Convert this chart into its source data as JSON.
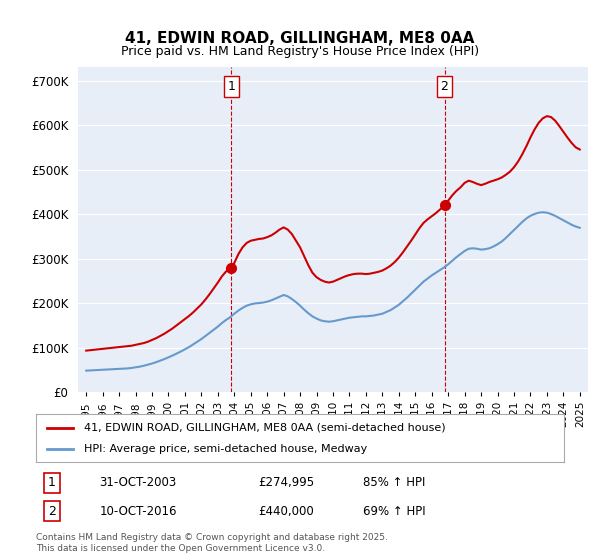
{
  "title": "41, EDWIN ROAD, GILLINGHAM, ME8 0AA",
  "subtitle": "Price paid vs. HM Land Registry's House Price Index (HPI)",
  "legend_line1": "41, EDWIN ROAD, GILLINGHAM, ME8 0AA (semi-detached house)",
  "legend_line2": "HPI: Average price, semi-detached house, Medway",
  "footnote": "Contains HM Land Registry data © Crown copyright and database right 2025.\nThis data is licensed under the Open Government Licence v3.0.",
  "marker1_label": "1",
  "marker1_date": "31-OCT-2003",
  "marker1_price": "£274,995",
  "marker1_hpi": "85% ↑ HPI",
  "marker2_label": "2",
  "marker2_date": "10-OCT-2016",
  "marker2_price": "£440,000",
  "marker2_hpi": "69% ↑ HPI",
  "red_color": "#cc0000",
  "blue_color": "#6699cc",
  "dashed_color": "#cc0000",
  "background_color": "#e8eef8",
  "plot_bg_color": "#e8eef8",
  "ylim": [
    0,
    730000
  ],
  "yticks": [
    0,
    100000,
    200000,
    300000,
    400000,
    500000,
    600000,
    700000
  ],
  "marker1_x": 2003.83,
  "marker2_x": 2016.78,
  "red_x": [
    1995,
    1995.25,
    1995.5,
    1995.75,
    1996,
    1996.25,
    1996.5,
    1996.75,
    1997,
    1997.25,
    1997.5,
    1997.75,
    1998,
    1998.25,
    1998.5,
    1998.75,
    1999,
    1999.25,
    1999.5,
    1999.75,
    2000,
    2000.25,
    2000.5,
    2000.75,
    2001,
    2001.25,
    2001.5,
    2001.75,
    2002,
    2002.25,
    2002.5,
    2002.75,
    2003,
    2003.25,
    2003.5,
    2003.75,
    2004,
    2004.25,
    2004.5,
    2004.75,
    2005,
    2005.25,
    2005.5,
    2005.75,
    2006,
    2006.25,
    2006.5,
    2006.75,
    2007,
    2007.25,
    2007.5,
    2007.75,
    2008,
    2008.25,
    2008.5,
    2008.75,
    2009,
    2009.25,
    2009.5,
    2009.75,
    2010,
    2010.25,
    2010.5,
    2010.75,
    2011,
    2011.25,
    2011.5,
    2011.75,
    2012,
    2012.25,
    2012.5,
    2012.75,
    2013,
    2013.25,
    2013.5,
    2013.75,
    2014,
    2014.25,
    2014.5,
    2014.75,
    2015,
    2015.25,
    2015.5,
    2015.75,
    2016,
    2016.25,
    2016.5,
    2016.75,
    2017,
    2017.25,
    2017.5,
    2017.75,
    2018,
    2018.25,
    2018.5,
    2018.75,
    2019,
    2019.25,
    2019.5,
    2019.75,
    2020,
    2020.25,
    2020.5,
    2020.75,
    2021,
    2021.25,
    2021.5,
    2021.75,
    2022,
    2022.25,
    2022.5,
    2022.75,
    2023,
    2023.25,
    2023.5,
    2023.75,
    2024,
    2024.25,
    2024.5,
    2024.75,
    2025
  ],
  "red_y": [
    93000,
    94000,
    95000,
    96000,
    97000,
    98000,
    99000,
    100000,
    101000,
    102000,
    103000,
    104000,
    106000,
    108000,
    110000,
    113000,
    117000,
    121000,
    126000,
    131000,
    137000,
    143000,
    150000,
    157000,
    164000,
    171000,
    179000,
    188000,
    197000,
    208000,
    220000,
    233000,
    246000,
    260000,
    271000,
    275000,
    290000,
    310000,
    325000,
    335000,
    340000,
    342000,
    344000,
    345000,
    348000,
    352000,
    358000,
    365000,
    370000,
    365000,
    355000,
    340000,
    325000,
    305000,
    285000,
    268000,
    258000,
    252000,
    248000,
    246000,
    248000,
    252000,
    256000,
    260000,
    263000,
    265000,
    266000,
    266000,
    265000,
    266000,
    268000,
    270000,
    273000,
    278000,
    284000,
    292000,
    302000,
    314000,
    327000,
    340000,
    354000,
    368000,
    380000,
    388000,
    395000,
    402000,
    410000,
    418000,
    430000,
    442000,
    452000,
    460000,
    470000,
    475000,
    472000,
    468000,
    465000,
    468000,
    472000,
    475000,
    478000,
    482000,
    488000,
    495000,
    505000,
    518000,
    534000,
    552000,
    572000,
    590000,
    605000,
    615000,
    620000,
    618000,
    610000,
    598000,
    585000,
    572000,
    560000,
    550000,
    545000
  ],
  "blue_x": [
    1995,
    1995.25,
    1995.5,
    1995.75,
    1996,
    1996.25,
    1996.5,
    1996.75,
    1997,
    1997.25,
    1997.5,
    1997.75,
    1998,
    1998.25,
    1998.5,
    1998.75,
    1999,
    1999.25,
    1999.5,
    1999.75,
    2000,
    2000.25,
    2000.5,
    2000.75,
    2001,
    2001.25,
    2001.5,
    2001.75,
    2002,
    2002.25,
    2002.5,
    2002.75,
    2003,
    2003.25,
    2003.5,
    2003.75,
    2004,
    2004.25,
    2004.5,
    2004.75,
    2005,
    2005.25,
    2005.5,
    2005.75,
    2006,
    2006.25,
    2006.5,
    2006.75,
    2007,
    2007.25,
    2007.5,
    2007.75,
    2008,
    2008.25,
    2008.5,
    2008.75,
    2009,
    2009.25,
    2009.5,
    2009.75,
    2010,
    2010.25,
    2010.5,
    2010.75,
    2011,
    2011.25,
    2011.5,
    2011.75,
    2012,
    2012.25,
    2012.5,
    2012.75,
    2013,
    2013.25,
    2013.5,
    2013.75,
    2014,
    2014.25,
    2014.5,
    2014.75,
    2015,
    2015.25,
    2015.5,
    2015.75,
    2016,
    2016.25,
    2016.5,
    2016.75,
    2017,
    2017.25,
    2017.5,
    2017.75,
    2018,
    2018.25,
    2018.5,
    2018.75,
    2019,
    2019.25,
    2019.5,
    2019.75,
    2020,
    2020.25,
    2020.5,
    2020.75,
    2021,
    2021.25,
    2021.5,
    2021.75,
    2022,
    2022.25,
    2022.5,
    2022.75,
    2023,
    2023.25,
    2023.5,
    2023.75,
    2024,
    2024.25,
    2024.5,
    2024.75,
    2025
  ],
  "blue_y": [
    48000,
    48500,
    49000,
    49500,
    50000,
    50500,
    51000,
    51500,
    52000,
    52500,
    53000,
    54000,
    55500,
    57000,
    59000,
    61500,
    64000,
    67000,
    70500,
    74000,
    78000,
    82000,
    86500,
    91000,
    96000,
    101000,
    107000,
    113000,
    119000,
    126000,
    133000,
    140000,
    147000,
    155000,
    162000,
    168000,
    176000,
    183000,
    189000,
    194000,
    197000,
    199000,
    200000,
    201000,
    203000,
    206000,
    210000,
    214000,
    218000,
    215000,
    209000,
    202000,
    194000,
    185000,
    177000,
    170000,
    165000,
    161000,
    159000,
    158000,
    159000,
    161000,
    163000,
    165000,
    167000,
    168000,
    169000,
    170000,
    170000,
    171000,
    172000,
    174000,
    176000,
    180000,
    184000,
    190000,
    196000,
    204000,
    212000,
    221000,
    230000,
    239000,
    248000,
    255000,
    262000,
    268000,
    274000,
    280000,
    287000,
    295000,
    303000,
    310000,
    317000,
    322000,
    323000,
    322000,
    320000,
    321000,
    323000,
    327000,
    332000,
    338000,
    346000,
    355000,
    364000,
    373000,
    382000,
    390000,
    396000,
    400000,
    403000,
    404000,
    403000,
    400000,
    396000,
    391000,
    386000,
    381000,
    376000,
    372000,
    369000
  ]
}
